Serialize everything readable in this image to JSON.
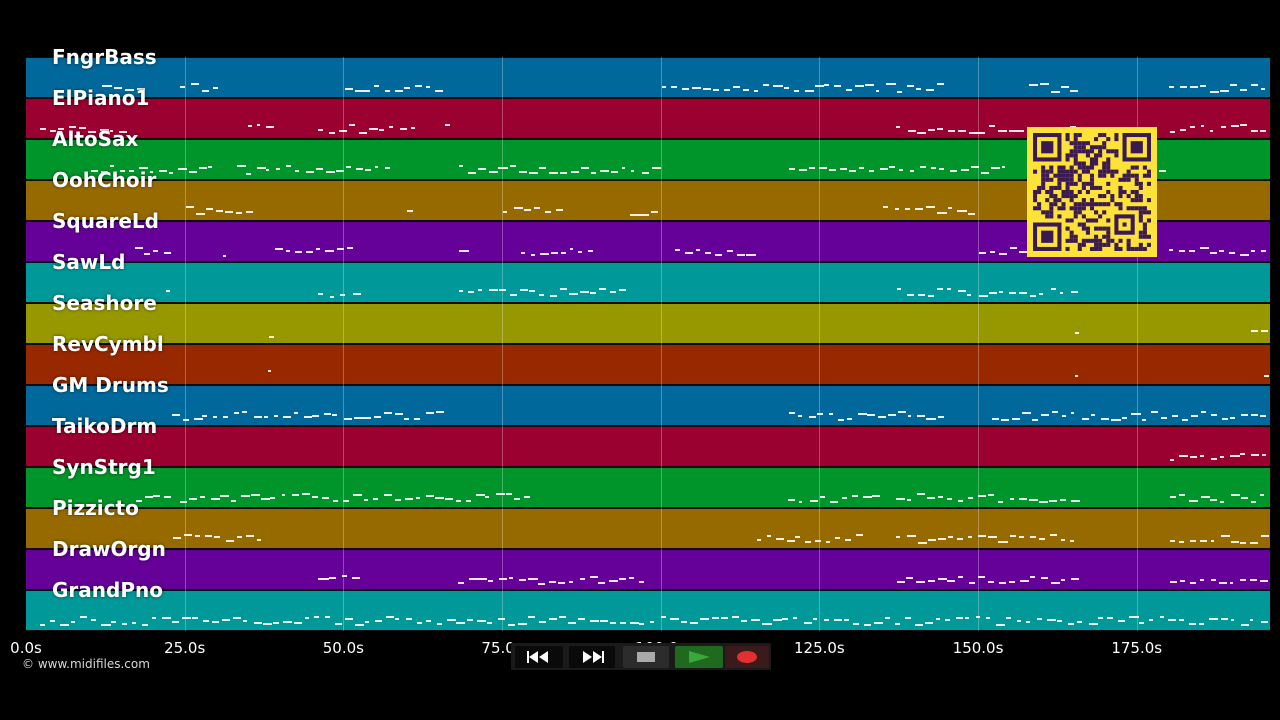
{
  "tracks": [
    {
      "name": "FngrBass",
      "color": "#00689a"
    },
    {
      "name": "ElPiano1",
      "color": "#9a0030"
    },
    {
      "name": "AltoSax",
      "color": "#00952a"
    },
    {
      "name": "OohChoir",
      "color": "#976a00"
    },
    {
      "name": "SquareLd",
      "color": "#650099"
    },
    {
      "name": "SawLd",
      "color": "#009898"
    },
    {
      "name": "Seashore",
      "color": "#979800"
    },
    {
      "name": "RevCymbl",
      "color": "#972800"
    },
    {
      "name": "GM Drums",
      "color": "#00689a"
    },
    {
      "name": "TaikoDrm",
      "color": "#9a0030"
    },
    {
      "name": "SynStrg1",
      "color": "#00952a"
    },
    {
      "name": "Pizzicto",
      "color": "#976a00"
    },
    {
      "name": "DrawOrgn",
      "color": "#650099"
    },
    {
      "name": "GrandPno",
      "color": "#009898"
    }
  ],
  "timeline": {
    "start_seconds": 0,
    "end_seconds": 196,
    "ticks": [
      {
        "value": 0,
        "label": "0.0s"
      },
      {
        "value": 25,
        "label": "25.0s"
      },
      {
        "value": 50,
        "label": "50.0s"
      },
      {
        "value": 75,
        "label": "75.0s"
      },
      {
        "value": 100,
        "label": "100.0s"
      },
      {
        "value": 125,
        "label": "125.0s"
      },
      {
        "value": 150,
        "label": "150.0s"
      },
      {
        "value": 175,
        "label": "175.0s"
      }
    ]
  },
  "copyright": "© www.midifiles.com",
  "transport": {
    "rewind_icon": "rewind-icon",
    "fast_forward_icon": "fast-forward-icon",
    "stop_icon": "stop-icon",
    "play_icon": "play-icon",
    "record_icon": "record-icon",
    "play_color": "#3aa83a",
    "record_color": "#e23030"
  },
  "qr_code": {
    "color": "#fde23a"
  }
}
